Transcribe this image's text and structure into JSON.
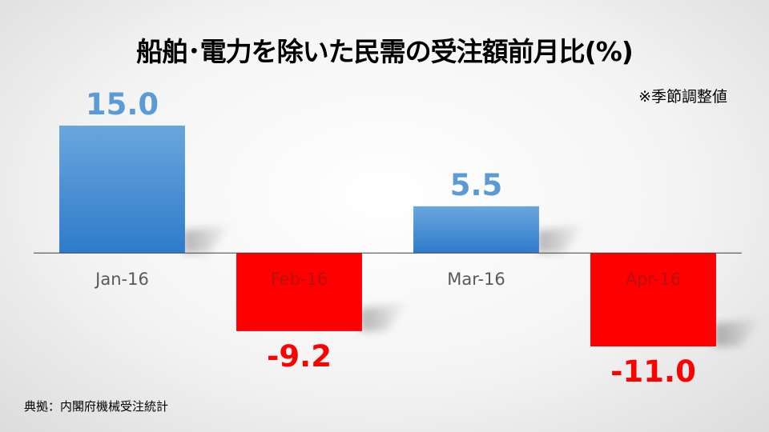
{
  "title": "船舶･電力を除いた民需の受注額前月比(%)",
  "note": "※季節調整値",
  "source": "典拠：内閣府機械受注統計",
  "colors": {
    "positive": "#5b9bd5",
    "negative": "#ff0000",
    "axis": "#404040",
    "tick_label": "#595959"
  },
  "chart_data": {
    "type": "bar",
    "title": "船舶･電力を除いた民需の受注額前月比(%)",
    "categories": [
      "Jan-16",
      "Feb-16",
      "Mar-16",
      "Apr-16"
    ],
    "values": [
      15.0,
      -9.2,
      5.5,
      -11.0
    ],
    "value_labels": [
      "15.0",
      "-9.2",
      "5.5",
      "-11.0"
    ],
    "xlabel": "",
    "ylabel": "",
    "ylim": [
      -11.0,
      15.0
    ],
    "grid": false,
    "legend": "none"
  }
}
